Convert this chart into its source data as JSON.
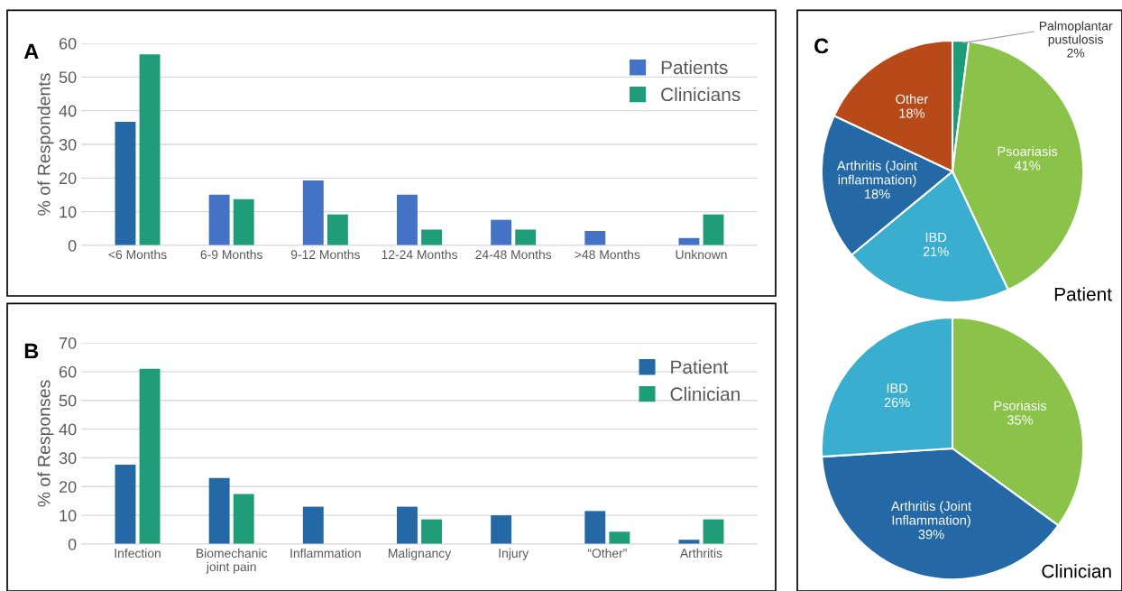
{
  "chart_data": [
    {
      "type": "bar",
      "annotations": [
        "A"
      ],
      "ylabel": "% of Respondents",
      "categories": [
        "<6 Months",
        "6-9 Months",
        "9-12 Months",
        "12-24 Months",
        "24-48 Months",
        ">48 Months",
        "Unknown"
      ],
      "series": [
        {
          "name": "Patients",
          "color": "#4472c4",
          "colors": [
            "#2469a6",
            "#4472c4",
            "#4472c4",
            "#4472c4",
            "#4472c4",
            "#4472c4",
            "#4472c4"
          ],
          "values": [
            36.7,
            15.1,
            19.3,
            15.1,
            7.6,
            4.3,
            2.2
          ]
        },
        {
          "name": "Clinicians",
          "color": "#1f9c78",
          "values": [
            56.7,
            13.7,
            9.2,
            4.7,
            4.7,
            null,
            9.2
          ]
        }
      ],
      "ylim": [
        0,
        60
      ],
      "yticks": [
        0,
        10,
        20,
        30,
        40,
        50,
        60
      ],
      "grid": "y",
      "legend": "top right"
    },
    {
      "type": "bar",
      "annotations": [
        "B"
      ],
      "ylabel": "% of Responses",
      "categories": [
        "Infection",
        "Biomechanic\njoint pain",
        "Inflammation",
        "Malignancy",
        "Injury",
        "“Other”",
        "Arthritis"
      ],
      "series": [
        {
          "name": "Patient",
          "color": "#2469a6",
          "values": [
            27.6,
            23,
            13,
            13,
            10,
            11.5,
            1.5
          ]
        },
        {
          "name": "Clinician",
          "color": "#1f9c78",
          "values": [
            61,
            17.4,
            null,
            8.6,
            null,
            4.3,
            8.6
          ]
        }
      ],
      "ylim": [
        0,
        70
      ],
      "yticks": [
        0,
        10,
        20,
        30,
        40,
        50,
        60,
        70
      ],
      "grid": "y",
      "legend": "top right"
    },
    {
      "type": "pie",
      "title": "Patient",
      "annotations": [
        "C"
      ],
      "categories": [
        "Palmoplantar\npustulosis",
        "Psoariasis",
        "IBD",
        "Arthritis (Joint\ninflammation)",
        "Other"
      ],
      "values": [
        2,
        41,
        21,
        18,
        18
      ],
      "value_labels": [
        "2%",
        "41%",
        "21%",
        "18%",
        "18%"
      ],
      "colors": [
        "#1e9c7a",
        "#8bc34a",
        "#3aaecf",
        "#2469a6",
        "#b84a1a"
      ]
    },
    {
      "type": "pie",
      "title": "Clinician",
      "categories": [
        "Psoriasis",
        "Arthritis (Joint\nInflammation)",
        "IBD"
      ],
      "values": [
        35,
        39,
        26
      ],
      "value_labels": [
        "35%",
        "39%",
        "26%"
      ],
      "colors": [
        "#8bc34a",
        "#2469a6",
        "#3aaecf"
      ]
    }
  ]
}
